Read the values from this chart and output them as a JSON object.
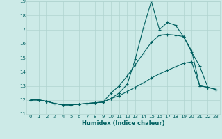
{
  "xlabel": "Humidex (Indice chaleur)",
  "xlim": [
    -0.5,
    23.5
  ],
  "ylim": [
    11,
    19
  ],
  "yticks": [
    11,
    12,
    13,
    14,
    15,
    16,
    17,
    18,
    19
  ],
  "xticks": [
    0,
    1,
    2,
    3,
    4,
    5,
    6,
    7,
    8,
    9,
    10,
    11,
    12,
    13,
    14,
    15,
    16,
    17,
    18,
    19,
    20,
    21,
    22,
    23
  ],
  "bg_color": "#cceae7",
  "grid_color": "#b0d4d0",
  "line_color": "#006060",
  "line1_x": [
    0,
    1,
    2,
    3,
    4,
    5,
    6,
    7,
    8,
    9,
    10,
    11,
    12,
    13,
    14,
    15,
    16,
    17,
    18,
    19,
    20,
    21,
    22,
    23
  ],
  "line1_y": [
    12.0,
    12.0,
    11.9,
    11.75,
    11.65,
    11.65,
    11.7,
    11.75,
    11.8,
    11.85,
    12.1,
    12.5,
    13.1,
    14.9,
    17.1,
    19.0,
    17.0,
    17.5,
    17.3,
    16.5,
    15.4,
    14.4,
    12.9,
    12.75
  ],
  "line2_x": [
    0,
    1,
    2,
    3,
    4,
    5,
    6,
    7,
    8,
    9,
    10,
    11,
    12,
    13,
    14,
    15,
    16,
    17,
    18,
    19,
    20,
    21,
    22,
    23
  ],
  "line2_y": [
    12.0,
    12.0,
    11.9,
    11.75,
    11.65,
    11.65,
    11.7,
    11.75,
    11.8,
    11.85,
    12.5,
    13.0,
    13.7,
    14.5,
    15.3,
    16.1,
    16.6,
    16.65,
    16.6,
    16.5,
    15.5,
    13.0,
    12.9,
    12.75
  ],
  "line3_x": [
    0,
    1,
    2,
    3,
    4,
    5,
    6,
    7,
    8,
    9,
    10,
    11,
    12,
    13,
    14,
    15,
    16,
    17,
    18,
    19,
    20,
    21,
    22,
    23
  ],
  "line3_y": [
    12.0,
    12.0,
    11.9,
    11.75,
    11.65,
    11.65,
    11.7,
    11.75,
    11.8,
    11.85,
    12.1,
    12.3,
    12.6,
    12.9,
    13.2,
    13.55,
    13.85,
    14.1,
    14.35,
    14.6,
    14.7,
    13.0,
    12.9,
    12.75
  ]
}
